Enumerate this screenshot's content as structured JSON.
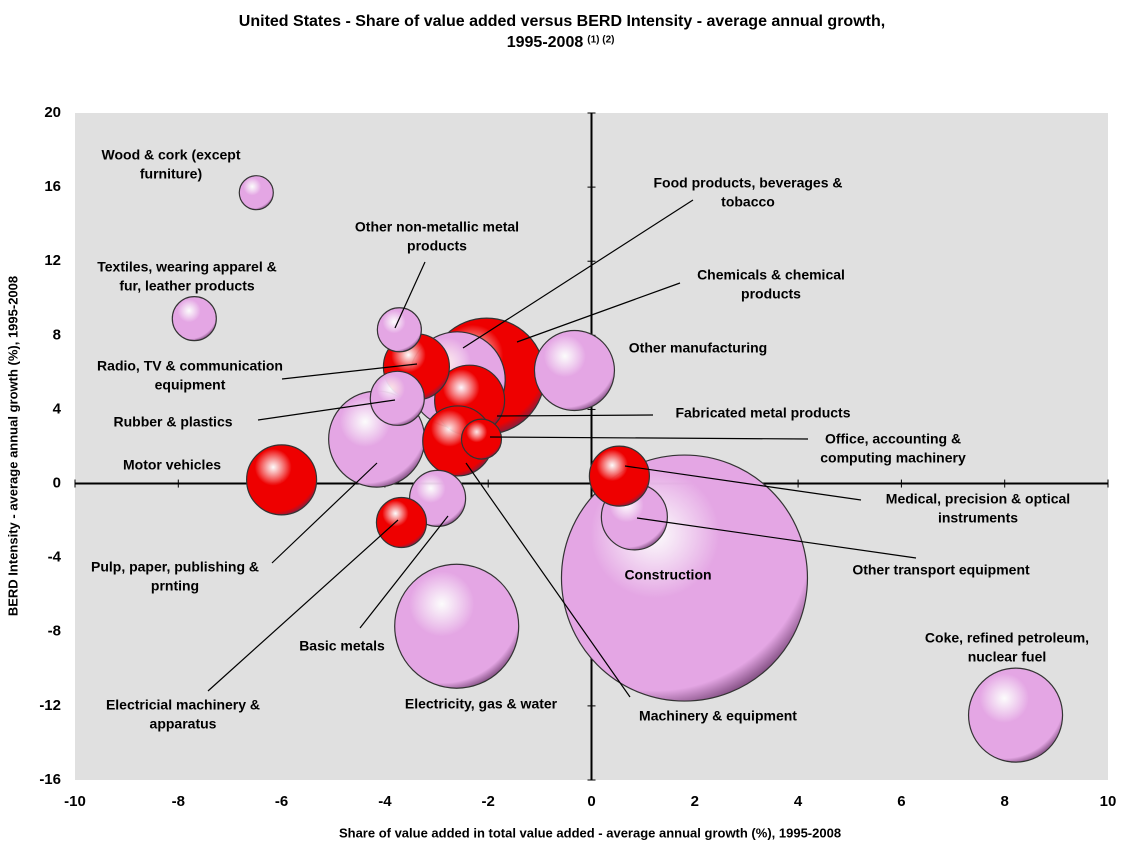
{
  "chart_data": {
    "type": "bubble",
    "title": [
      "United States - Share of value added versus BERD Intensity - average annual growth,",
      "1995-2008"
    ],
    "title_notes": "(1) (2)",
    "x_label": "Share of value added in total value added - average annual growth (%), 1995-2008",
    "y_label": "BERD Intensity - average annual growth (%), 1995-2008",
    "labels": [
      [
        "Construction"
      ],
      [
        "Electricity, gas & water"
      ],
      [
        "Chemicals & chemical",
        "products"
      ],
      [
        "Food products, beverages &",
        "tobacco"
      ],
      [
        "Pulp, paper, publishing &",
        "prnting"
      ],
      [
        "Coke, refined petroleum,",
        "nuclear fuel"
      ],
      [
        "Other manufacturing"
      ],
      [
        "Fabricated metal products"
      ],
      [
        "Machinery & equipment"
      ],
      [
        "Motor vehicles"
      ],
      [
        "Radio, TV & communication",
        "equipment"
      ],
      [
        "Other transport equipment"
      ],
      [
        "Medical, precision & optical",
        "instruments"
      ],
      [
        "Basic metals"
      ],
      [
        "Rubber & plastics"
      ],
      [
        "Electricial machinery &",
        "apparatus"
      ],
      [
        "Other non-metallic metal",
        "products"
      ],
      [
        "Textiles, wearing apparel &",
        "fur, leather products"
      ],
      [
        "Office, accounting &",
        "computing machinery"
      ],
      [
        "Wood & cork (except",
        "furniture)"
      ]
    ],
    "x": [
      1.8,
      -2.61,
      -2.03,
      -2.6,
      -4.16,
      8.21,
      -0.33,
      -2.36,
      -2.59,
      -6.0,
      -3.39,
      0.83,
      0.54,
      -2.98,
      -3.76,
      -3.68,
      -3.72,
      -7.69,
      -2.13,
      -6.49
    ],
    "y": [
      -5.1,
      -7.7,
      5.8,
      5.6,
      2.4,
      -12.5,
      6.1,
      4.5,
      2.3,
      0.2,
      6.3,
      -1.8,
      0.4,
      -0.8,
      4.6,
      -2.1,
      8.3,
      8.9,
      2.4,
      15.7
    ],
    "sizes": [
      123,
      62,
      58,
      48,
      48,
      47,
      40,
      35,
      35,
      35,
      33,
      33,
      30,
      28,
      27,
      25,
      22,
      22,
      20,
      17
    ],
    "colors": [
      "#e4a6e4",
      "#e4a6e4",
      "#ee0000",
      "#e4a6e4",
      "#e4a6e4",
      "#e4a6e4",
      "#e4a6e4",
      "#ee0000",
      "#ee0000",
      "#ee0000",
      "#ee0000",
      "#e4a6e4",
      "#ee0000",
      "#e4a6e4",
      "#e4a6e4",
      "#ee0000",
      "#e4a6e4",
      "#e4a6e4",
      "#ee0000",
      "#e4a6e4"
    ],
    "xlim": [
      -10,
      10
    ],
    "ylim": [
      -16,
      20
    ],
    "xticks": [
      -10,
      -8,
      -6,
      -4,
      -2,
      0,
      2,
      4,
      6,
      8,
      10
    ],
    "yticks": [
      -16,
      -12,
      -8,
      -4,
      0,
      4,
      8,
      12,
      16,
      20
    ],
    "plot_background": "#e0e0e0"
  }
}
